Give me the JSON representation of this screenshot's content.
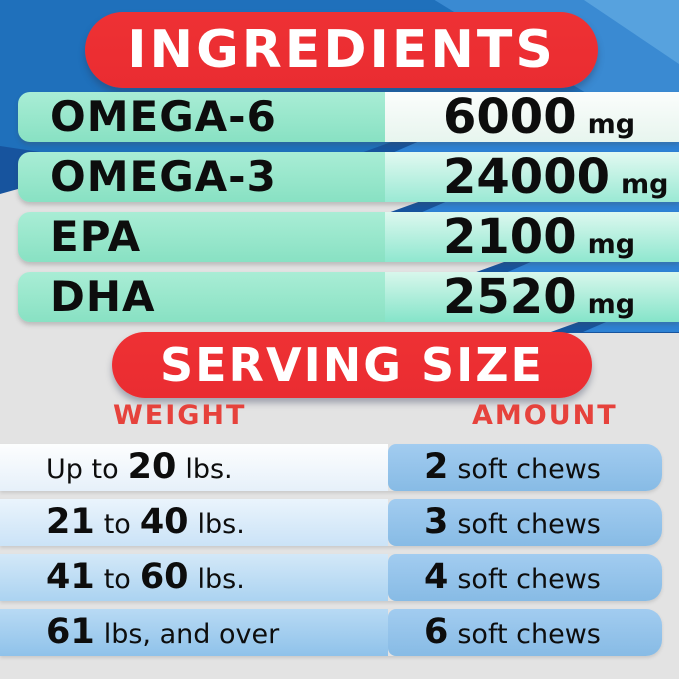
{
  "header": {
    "title": "INGREDIENTS"
  },
  "ingredients": {
    "rows": [
      {
        "name": "OMEGA-6",
        "value": "6000",
        "unit": "mg"
      },
      {
        "name": "OMEGA-3",
        "value": "24000",
        "unit": "mg"
      },
      {
        "name": "EPA",
        "value": "2100",
        "unit": "mg"
      },
      {
        "name": "DHA",
        "value": "2520",
        "unit": "mg"
      }
    ]
  },
  "serving": {
    "title": "SERVING SIZE",
    "columns": {
      "weight": "WEIGHT",
      "amount": "AMOUNT"
    },
    "rows": [
      {
        "weight": [
          [
            "Up to",
            0
          ],
          [
            "20",
            1
          ],
          [
            "lbs.",
            0
          ]
        ],
        "amount": [
          [
            "2",
            1
          ],
          [
            "soft chews",
            0
          ]
        ]
      },
      {
        "weight": [
          [
            "21",
            1
          ],
          [
            "to",
            0
          ],
          [
            "40",
            1
          ],
          [
            "lbs.",
            0
          ]
        ],
        "amount": [
          [
            "3",
            1
          ],
          [
            "soft chews",
            0
          ]
        ]
      },
      {
        "weight": [
          [
            "41",
            1
          ],
          [
            "to",
            0
          ],
          [
            "60",
            1
          ],
          [
            "lbs.",
            0
          ]
        ],
        "amount": [
          [
            "4",
            1
          ],
          [
            "soft chews",
            0
          ]
        ]
      },
      {
        "weight": [
          [
            "61",
            1
          ],
          [
            "lbs, and over",
            0
          ]
        ],
        "amount": [
          [
            "6",
            1
          ],
          [
            "soft chews",
            0
          ]
        ]
      }
    ]
  },
  "colors": {
    "pill_red": "#ee3134",
    "column_label_red": "#e6423c",
    "header_blue": "#1f70bb",
    "light_blue_band": "#3a8ad2",
    "navy_accent": "#17549e",
    "stripe_blue": "#2e82d4",
    "mint_green": "#8ae2c4",
    "serving_blue": "#8fc1e9",
    "background_gray": "#e3e3e3",
    "text_black": "#0d0d0d",
    "pill_text_white": "#ffffff"
  }
}
